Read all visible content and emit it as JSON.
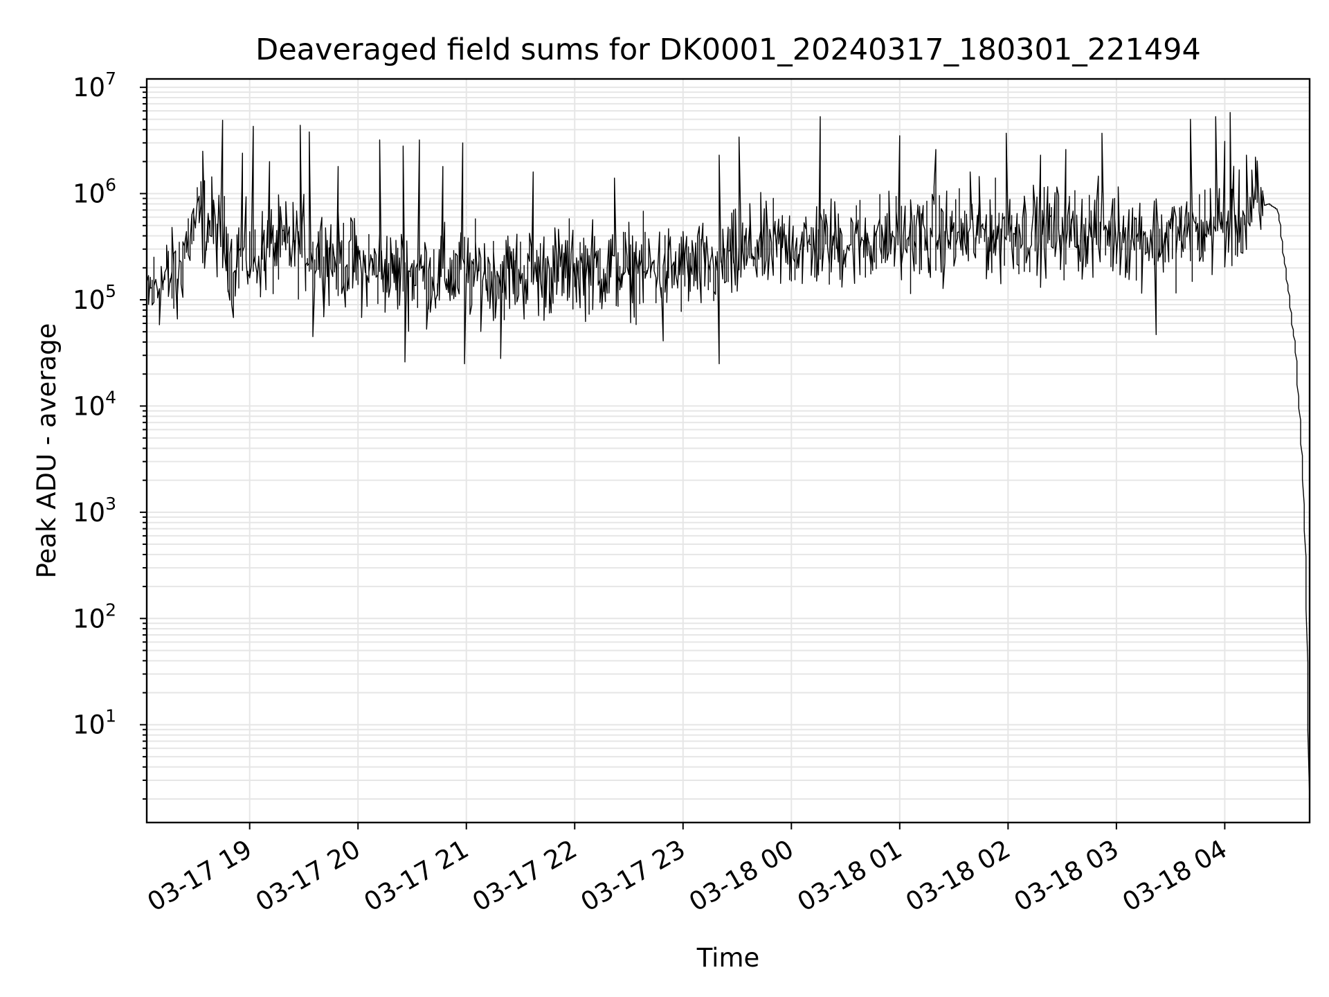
{
  "chart_data": {
    "type": "line",
    "title": "Deaveraged field sums for DK0001_20240317_180301_221494",
    "xlabel": "Time",
    "ylabel": "Peak ADU - average",
    "y_scale": "log",
    "ylim": [
      1.2,
      12000000
    ],
    "xlim": [
      "2024-03-17 18:03",
      "2024-03-18 04:47"
    ],
    "x_tick_labels": [
      "03-17 19",
      "03-17 20",
      "03-17 21",
      "03-17 22",
      "03-17 23",
      "03-18 00",
      "03-18 01",
      "03-18 02",
      "03-18 03",
      "03-18 04"
    ],
    "x_ticks": [
      "2024-03-17 19:00",
      "2024-03-17 20:00",
      "2024-03-17 21:00",
      "2024-03-17 22:00",
      "2024-03-17 23:00",
      "2024-03-18 00:00",
      "2024-03-18 01:00",
      "2024-03-18 02:00",
      "2024-03-18 03:00",
      "2024-03-18 04:00"
    ],
    "y_ticks": [
      {
        "base": "10",
        "exp": "1",
        "value": 10
      },
      {
        "base": "10",
        "exp": "2",
        "value": 100
      },
      {
        "base": "10",
        "exp": "3",
        "value": 1000
      },
      {
        "base": "10",
        "exp": "4",
        "value": 10000
      },
      {
        "base": "10",
        "exp": "5",
        "value": 100000
      },
      {
        "base": "10",
        "exp": "6",
        "value": 1000000
      },
      {
        "base": "10",
        "exp": "7",
        "value": 10000000
      }
    ],
    "grid": true,
    "series": [
      {
        "color": "#000000",
        "x": [
          "2024-03-17 18:03",
          "2024-03-17 18:10",
          "2024-03-17 18:20",
          "2024-03-17 18:27",
          "2024-03-17 18:32",
          "2024-03-17 18:40",
          "2024-03-17 18:50",
          "2024-03-17 19:00",
          "2024-03-17 19:15",
          "2024-03-17 19:30",
          "2024-03-17 19:45",
          "2024-03-17 20:00",
          "2024-03-17 20:20",
          "2024-03-17 20:40",
          "2024-03-17 21:00",
          "2024-03-17 21:20",
          "2024-03-17 21:40",
          "2024-03-17 22:00",
          "2024-03-17 22:20",
          "2024-03-17 22:40",
          "2024-03-17 23:00",
          "2024-03-17 23:20",
          "2024-03-17 23:40",
          "2024-03-18 00:00",
          "2024-03-18 00:20",
          "2024-03-18 00:40",
          "2024-03-18 01:00",
          "2024-03-18 01:20",
          "2024-03-18 01:40",
          "2024-03-18 02:00",
          "2024-03-18 02:20",
          "2024-03-18 02:40",
          "2024-03-18 03:00",
          "2024-03-18 03:20",
          "2024-03-18 03:40",
          "2024-03-18 04:00",
          "2024-03-18 04:10",
          "2024-03-18 04:20",
          "2024-03-18 04:25",
          "2024-03-18 04:30",
          "2024-03-18 04:35",
          "2024-03-18 04:40",
          "2024-03-18 04:44",
          "2024-03-18 04:46",
          "2024-03-18 04:47"
        ],
        "y": [
          110000,
          140000,
          170000,
          400000,
          580000,
          500000,
          280000,
          250000,
          300000,
          330000,
          260000,
          210000,
          180000,
          170000,
          175000,
          180000,
          175000,
          200000,
          200000,
          195000,
          190000,
          200000,
          300000,
          320000,
          330000,
          360000,
          380000,
          400000,
          420000,
          440000,
          450000,
          450000,
          430000,
          380000,
          400000,
          520000,
          560000,
          750000,
          800000,
          700000,
          150000,
          30000,
          2000,
          100,
          2
        ],
        "spikes": [
          {
            "x": "2024-03-17 18:35",
            "y": 2500000
          },
          {
            "x": "2024-03-17 18:45",
            "y": 4900000
          },
          {
            "x": "2024-03-17 18:56",
            "y": 2400000
          },
          {
            "x": "2024-03-17 19:02",
            "y": 4300000
          },
          {
            "x": "2024-03-17 19:11",
            "y": 2000000
          },
          {
            "x": "2024-03-17 19:29",
            "y": 4400000
          },
          {
            "x": "2024-03-17 19:34",
            "y": 3800000
          },
          {
            "x": "2024-03-17 19:49",
            "y": 1800000
          },
          {
            "x": "2024-03-17 20:13",
            "y": 3200000
          },
          {
            "x": "2024-03-17 20:26",
            "y": 2800000
          },
          {
            "x": "2024-03-17 20:34",
            "y": 3200000
          },
          {
            "x": "2024-03-17 20:47",
            "y": 1800000
          },
          {
            "x": "2024-03-17 20:58",
            "y": 3000000
          },
          {
            "x": "2024-03-17 21:37",
            "y": 1600000
          },
          {
            "x": "2024-03-17 22:23",
            "y": 1400000
          },
          {
            "x": "2024-03-17 23:21",
            "y": 2300000
          },
          {
            "x": "2024-03-17 23:32",
            "y": 3400000
          },
          {
            "x": "2024-03-18 00:16",
            "y": 5300000
          },
          {
            "x": "2024-03-18 01:00",
            "y": 3500000
          },
          {
            "x": "2024-03-18 01:20",
            "y": 2600000
          },
          {
            "x": "2024-03-18 01:40",
            "y": 1600000
          },
          {
            "x": "2024-03-18 02:00",
            "y": 3700000
          },
          {
            "x": "2024-03-18 02:18",
            "y": 2300000
          },
          {
            "x": "2024-03-18 02:32",
            "y": 2600000
          },
          {
            "x": "2024-03-18 02:53",
            "y": 3700000
          },
          {
            "x": "2024-03-18 03:42",
            "y": 5000000
          },
          {
            "x": "2024-03-18 03:56",
            "y": 5300000
          },
          {
            "x": "2024-03-18 04:00",
            "y": 3100000
          },
          {
            "x": "2024-03-18 04:04",
            "y": 5800000
          },
          {
            "x": "2024-03-18 04:13",
            "y": 2300000
          },
          {
            "x": "2024-03-18 04:18",
            "y": 2200000
          }
        ],
        "dips": [
          {
            "x": "2024-03-17 18:20",
            "y": 66000
          },
          {
            "x": "2024-03-17 18:51",
            "y": 68000
          },
          {
            "x": "2024-03-17 19:36",
            "y": 45000
          },
          {
            "x": "2024-03-17 20:27",
            "y": 26000
          },
          {
            "x": "2024-03-17 21:00",
            "y": 25000
          },
          {
            "x": "2024-03-17 21:20",
            "y": 28000
          },
          {
            "x": "2024-03-17 22:49",
            "y": 41000
          },
          {
            "x": "2024-03-17 23:20",
            "y": 25000
          },
          {
            "x": "2024-03-18 03:22",
            "y": 47000
          }
        ]
      }
    ]
  }
}
